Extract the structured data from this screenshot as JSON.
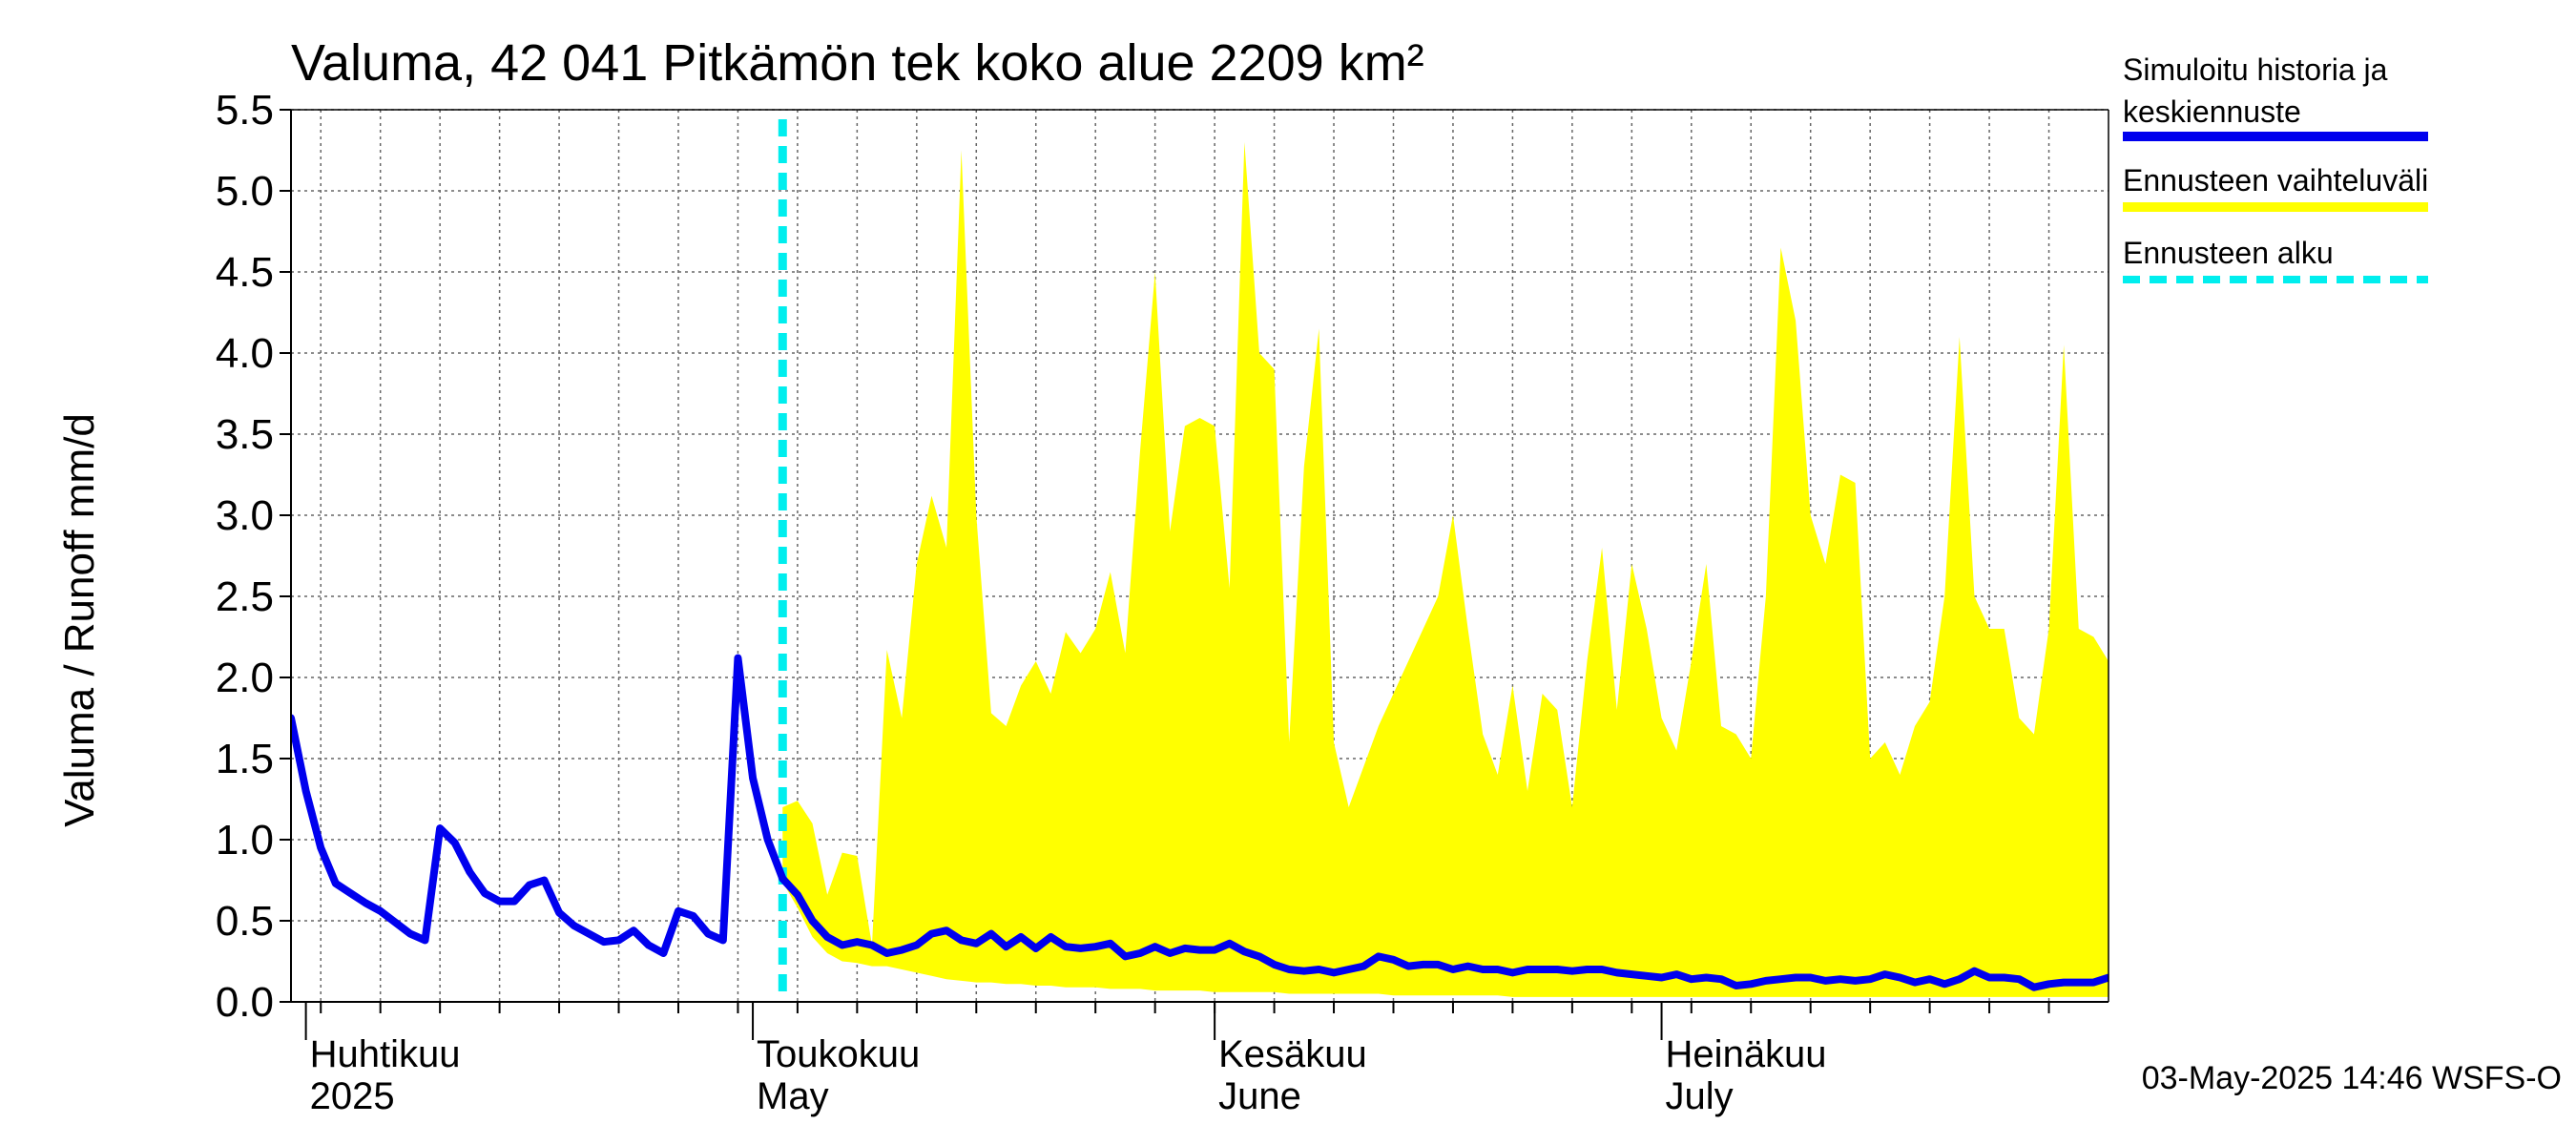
{
  "chart_data": {
    "type": "area",
    "title": "Valuma, 42 041 Pitkämön tek koko alue 2209 km²",
    "ylabel": "Valuma / Runoff     mm/d",
    "ylim": [
      0,
      5.5
    ],
    "yticks": [
      "0.0",
      "0.5",
      "1.0",
      "1.5",
      "2.0",
      "2.5",
      "3.0",
      "3.5",
      "4.0",
      "4.5",
      "5.0",
      "5.5"
    ],
    "grid": true,
    "legend_position": "right",
    "x_start": "2025-03-31",
    "x_end": "2025-07-31",
    "forecast_start": "2025-05-03",
    "month_labels": [
      {
        "date": "2025-04-01",
        "line1": "Huhtikuu",
        "line2": "2025"
      },
      {
        "date": "2025-05-01",
        "line1": "Toukokuu",
        "line2": "May"
      },
      {
        "date": "2025-06-01",
        "line1": "Kesäkuu",
        "line2": "June"
      },
      {
        "date": "2025-07-01",
        "line1": "Heinäkuu",
        "line2": "July"
      }
    ],
    "legend": [
      {
        "label_lines": [
          "Simuloitu historia ja",
          "keskiennuste"
        ],
        "color": "#0000ee",
        "style": "solid"
      },
      {
        "label_lines": [
          "Ennusteen vaihteluväli"
        ],
        "color": "#ffff00",
        "style": "solid"
      },
      {
        "label_lines": [
          "Ennusteen alku"
        ],
        "color": "#00eeee",
        "style": "dashed"
      }
    ],
    "history": {
      "name": "Simuloitu historia ja keskiennuste",
      "color": "#0000ee",
      "points": [
        [
          "2025-03-31",
          1.75
        ],
        [
          "2025-04-01",
          1.3
        ],
        [
          "2025-04-02",
          0.95
        ],
        [
          "2025-04-03",
          0.73
        ],
        [
          "2025-04-04",
          0.67
        ],
        [
          "2025-04-05",
          0.61
        ],
        [
          "2025-04-06",
          0.56
        ],
        [
          "2025-04-07",
          0.49
        ],
        [
          "2025-04-08",
          0.42
        ],
        [
          "2025-04-09",
          0.38
        ],
        [
          "2025-04-10",
          1.07
        ],
        [
          "2025-04-11",
          0.98
        ],
        [
          "2025-04-12",
          0.8
        ],
        [
          "2025-04-13",
          0.67
        ],
        [
          "2025-04-14",
          0.62
        ],
        [
          "2025-04-15",
          0.62
        ],
        [
          "2025-04-16",
          0.72
        ],
        [
          "2025-04-17",
          0.75
        ],
        [
          "2025-04-18",
          0.55
        ],
        [
          "2025-04-19",
          0.47
        ],
        [
          "2025-04-20",
          0.42
        ],
        [
          "2025-04-21",
          0.37
        ],
        [
          "2025-04-22",
          0.38
        ],
        [
          "2025-04-23",
          0.44
        ],
        [
          "2025-04-24",
          0.35
        ],
        [
          "2025-04-25",
          0.3
        ],
        [
          "2025-04-26",
          0.56
        ],
        [
          "2025-04-27",
          0.53
        ],
        [
          "2025-04-28",
          0.42
        ],
        [
          "2025-04-29",
          0.38
        ],
        [
          "2025-04-30",
          2.12
        ],
        [
          "2025-05-01",
          1.38
        ],
        [
          "2025-05-02",
          1.0
        ],
        [
          "2025-05-03",
          0.76
        ]
      ]
    },
    "forecast": {
      "color": "#0000ee",
      "band_color": "#ffff00",
      "points": [
        [
          "2025-05-03",
          0.76,
          0.74,
          1.2
        ],
        [
          "2025-05-04",
          0.66,
          0.58,
          1.24
        ],
        [
          "2025-05-05",
          0.5,
          0.4,
          1.1
        ],
        [
          "2025-05-06",
          0.4,
          0.3,
          0.66
        ],
        [
          "2025-05-07",
          0.35,
          0.25,
          0.92
        ],
        [
          "2025-05-08",
          0.37,
          0.24,
          0.9
        ],
        [
          "2025-05-09",
          0.35,
          0.22,
          0.35
        ],
        [
          "2025-05-10",
          0.3,
          0.22,
          2.17
        ],
        [
          "2025-05-11",
          0.32,
          0.2,
          1.75
        ],
        [
          "2025-05-12",
          0.35,
          0.18,
          2.7
        ],
        [
          "2025-05-13",
          0.42,
          0.16,
          3.12
        ],
        [
          "2025-05-14",
          0.44,
          0.14,
          2.8
        ],
        [
          "2025-05-15",
          0.38,
          0.13,
          5.25
        ],
        [
          "2025-05-16",
          0.36,
          0.12,
          3.0
        ],
        [
          "2025-05-17",
          0.42,
          0.12,
          1.78
        ],
        [
          "2025-05-18",
          0.34,
          0.11,
          1.7
        ],
        [
          "2025-05-19",
          0.4,
          0.11,
          1.95
        ],
        [
          "2025-05-20",
          0.33,
          0.1,
          2.1
        ],
        [
          "2025-05-21",
          0.4,
          0.1,
          1.9
        ],
        [
          "2025-05-22",
          0.34,
          0.09,
          2.28
        ],
        [
          "2025-05-23",
          0.33,
          0.09,
          2.15
        ],
        [
          "2025-05-24",
          0.34,
          0.09,
          2.3
        ],
        [
          "2025-05-25",
          0.36,
          0.08,
          2.65
        ],
        [
          "2025-05-26",
          0.28,
          0.08,
          2.15
        ],
        [
          "2025-05-27",
          0.3,
          0.08,
          3.4
        ],
        [
          "2025-05-28",
          0.34,
          0.07,
          4.5
        ],
        [
          "2025-05-29",
          0.3,
          0.07,
          2.9
        ],
        [
          "2025-05-30",
          0.33,
          0.07,
          3.55
        ],
        [
          "2025-05-31",
          0.32,
          0.07,
          3.6
        ],
        [
          "2025-06-01",
          0.32,
          0.06,
          3.55
        ],
        [
          "2025-06-02",
          0.36,
          0.06,
          2.55
        ],
        [
          "2025-06-03",
          0.31,
          0.06,
          5.3
        ],
        [
          "2025-06-04",
          0.28,
          0.06,
          4.0
        ],
        [
          "2025-06-05",
          0.23,
          0.06,
          3.9
        ],
        [
          "2025-06-06",
          0.2,
          0.05,
          1.6
        ],
        [
          "2025-06-07",
          0.19,
          0.05,
          3.3
        ],
        [
          "2025-06-08",
          0.2,
          0.05,
          4.15
        ],
        [
          "2025-06-09",
          0.18,
          0.05,
          1.6
        ],
        [
          "2025-06-10",
          0.2,
          0.05,
          1.2
        ],
        [
          "2025-06-11",
          0.22,
          0.05,
          1.45
        ],
        [
          "2025-06-12",
          0.28,
          0.05,
          1.7
        ],
        [
          "2025-06-13",
          0.26,
          0.04,
          1.9
        ],
        [
          "2025-06-14",
          0.22,
          0.04,
          2.1
        ],
        [
          "2025-06-15",
          0.23,
          0.04,
          2.3
        ],
        [
          "2025-06-16",
          0.23,
          0.04,
          2.5
        ],
        [
          "2025-06-17",
          0.2,
          0.04,
          3.0
        ],
        [
          "2025-06-18",
          0.22,
          0.04,
          2.3
        ],
        [
          "2025-06-19",
          0.2,
          0.04,
          1.65
        ],
        [
          "2025-06-20",
          0.2,
          0.04,
          1.4
        ],
        [
          "2025-06-21",
          0.18,
          0.03,
          1.95
        ],
        [
          "2025-06-22",
          0.2,
          0.03,
          1.3
        ],
        [
          "2025-06-23",
          0.2,
          0.03,
          1.9
        ],
        [
          "2025-06-24",
          0.2,
          0.03,
          1.8
        ],
        [
          "2025-06-25",
          0.19,
          0.03,
          1.2
        ],
        [
          "2025-06-26",
          0.2,
          0.03,
          2.1
        ],
        [
          "2025-06-27",
          0.2,
          0.03,
          2.8
        ],
        [
          "2025-06-28",
          0.18,
          0.03,
          1.8
        ],
        [
          "2025-06-29",
          0.17,
          0.03,
          2.7
        ],
        [
          "2025-06-30",
          0.16,
          0.03,
          2.3
        ],
        [
          "2025-07-01",
          0.15,
          0.03,
          1.75
        ],
        [
          "2025-07-02",
          0.17,
          0.03,
          1.55
        ],
        [
          "2025-07-03",
          0.14,
          0.03,
          2.1
        ],
        [
          "2025-07-04",
          0.15,
          0.03,
          2.7
        ],
        [
          "2025-07-05",
          0.14,
          0.03,
          1.7
        ],
        [
          "2025-07-06",
          0.1,
          0.03,
          1.65
        ],
        [
          "2025-07-07",
          0.11,
          0.03,
          1.5
        ],
        [
          "2025-07-08",
          0.13,
          0.03,
          2.5
        ],
        [
          "2025-07-09",
          0.14,
          0.03,
          4.65
        ],
        [
          "2025-07-10",
          0.15,
          0.03,
          4.2
        ],
        [
          "2025-07-11",
          0.15,
          0.03,
          3.0
        ],
        [
          "2025-07-12",
          0.13,
          0.03,
          2.7
        ],
        [
          "2025-07-13",
          0.14,
          0.03,
          3.25
        ],
        [
          "2025-07-14",
          0.13,
          0.03,
          3.2
        ],
        [
          "2025-07-15",
          0.14,
          0.03,
          1.5
        ],
        [
          "2025-07-16",
          0.17,
          0.03,
          1.6
        ],
        [
          "2025-07-17",
          0.15,
          0.03,
          1.4
        ],
        [
          "2025-07-18",
          0.12,
          0.03,
          1.7
        ],
        [
          "2025-07-19",
          0.14,
          0.03,
          1.85
        ],
        [
          "2025-07-20",
          0.11,
          0.03,
          2.5
        ],
        [
          "2025-07-21",
          0.14,
          0.03,
          4.1
        ],
        [
          "2025-07-22",
          0.19,
          0.03,
          2.5
        ],
        [
          "2025-07-23",
          0.15,
          0.03,
          2.3
        ],
        [
          "2025-07-24",
          0.15,
          0.03,
          2.3
        ],
        [
          "2025-07-25",
          0.14,
          0.03,
          1.75
        ],
        [
          "2025-07-26",
          0.09,
          0.03,
          1.65
        ],
        [
          "2025-07-27",
          0.11,
          0.03,
          2.3
        ],
        [
          "2025-07-28",
          0.12,
          0.03,
          4.05
        ],
        [
          "2025-07-29",
          0.12,
          0.03,
          2.3
        ],
        [
          "2025-07-30",
          0.12,
          0.03,
          2.25
        ],
        [
          "2025-07-31",
          0.15,
          0.03,
          2.1
        ]
      ]
    },
    "footer": "03-May-2025 14:46 WSFS-O"
  }
}
